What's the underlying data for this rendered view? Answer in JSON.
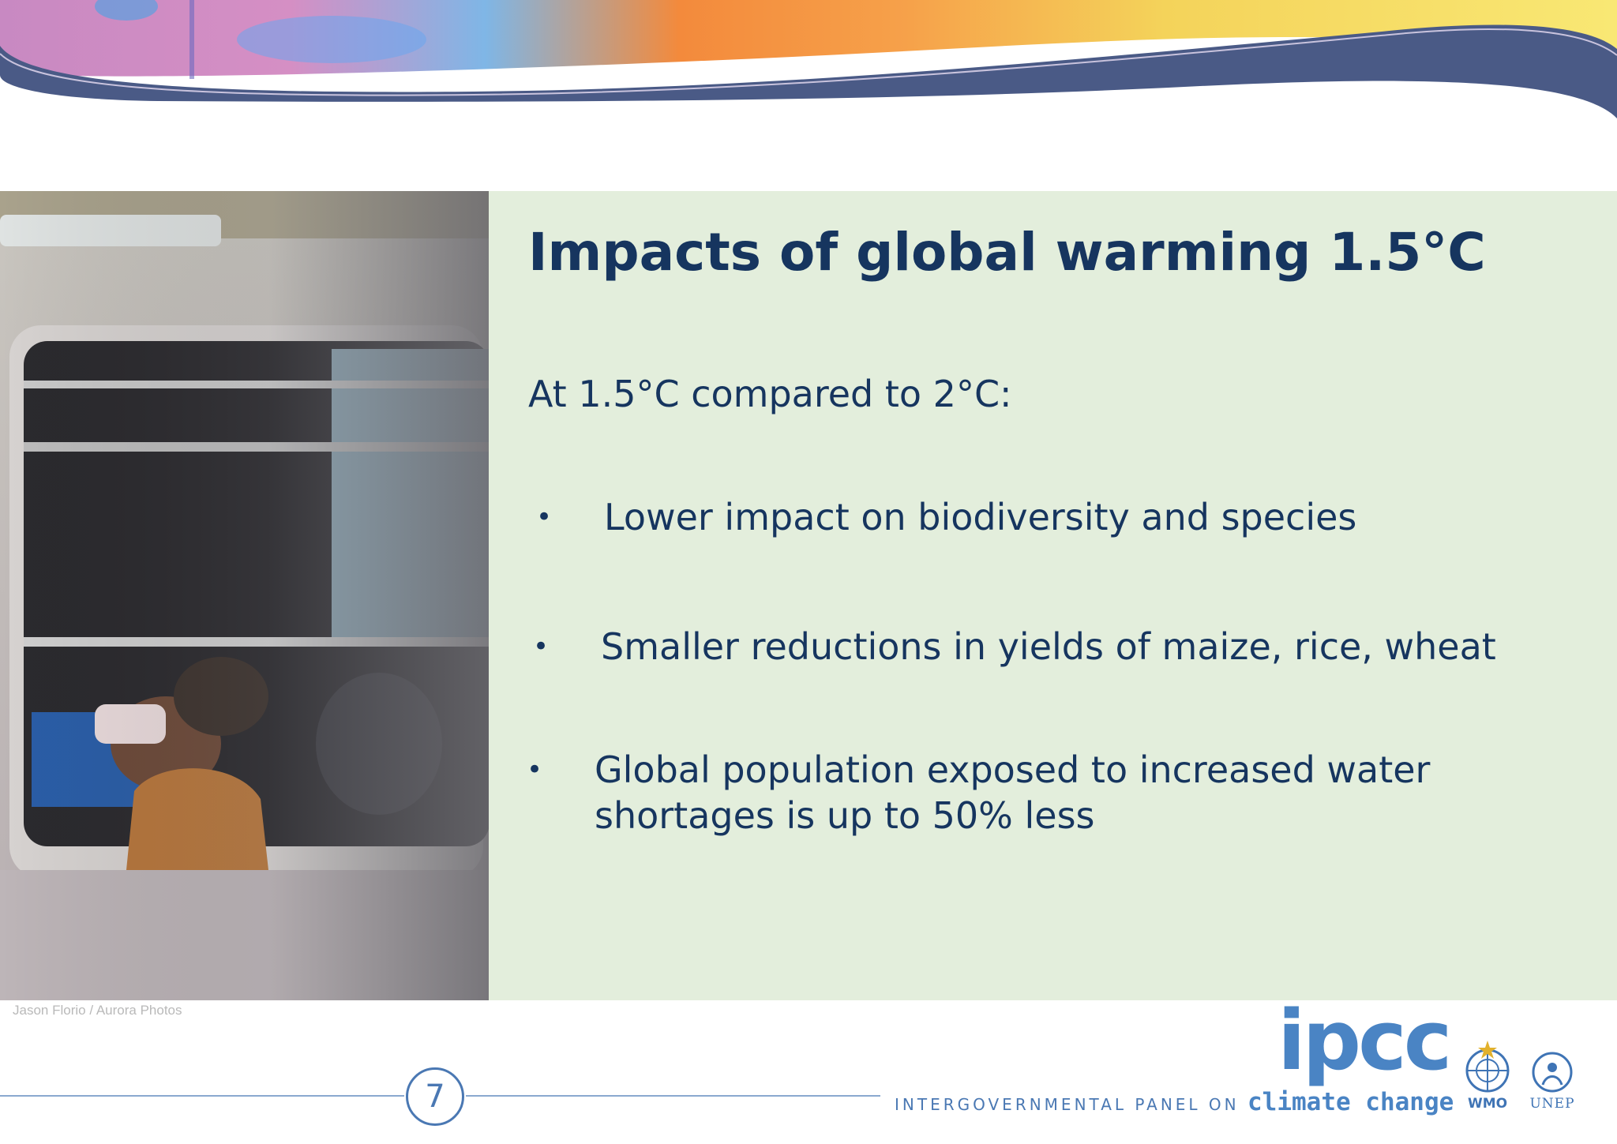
{
  "slide": {
    "title": "Impacts of global warming 1.5°C",
    "intro": "At 1.5°C compared to 2°C:",
    "bullets": [
      {
        "lines": [
          "Lower impact on biodiversity and species"
        ]
      },
      {
        "lines": [
          "Smaller reductions in yields of maize, rice, wheat"
        ]
      },
      {
        "lines": [
          "Global population exposed to increased water",
          "shortages is up to 50% less"
        ]
      }
    ],
    "bullet_symbol": "•"
  },
  "photo": {
    "credit": "Jason Florio / Aurora Photos"
  },
  "footer": {
    "page_number": "7",
    "logo_text": "ipcc",
    "logo_subtitle": "INTERGOVERNMENTAL PANEL ON",
    "logo_subtitle_emphasis": "climate change",
    "partner_logos": [
      "WMO",
      "UNEP"
    ]
  },
  "colors": {
    "title": "#16355f",
    "content_background": "#e3eedc",
    "accent_blue": "#4a78b3"
  }
}
